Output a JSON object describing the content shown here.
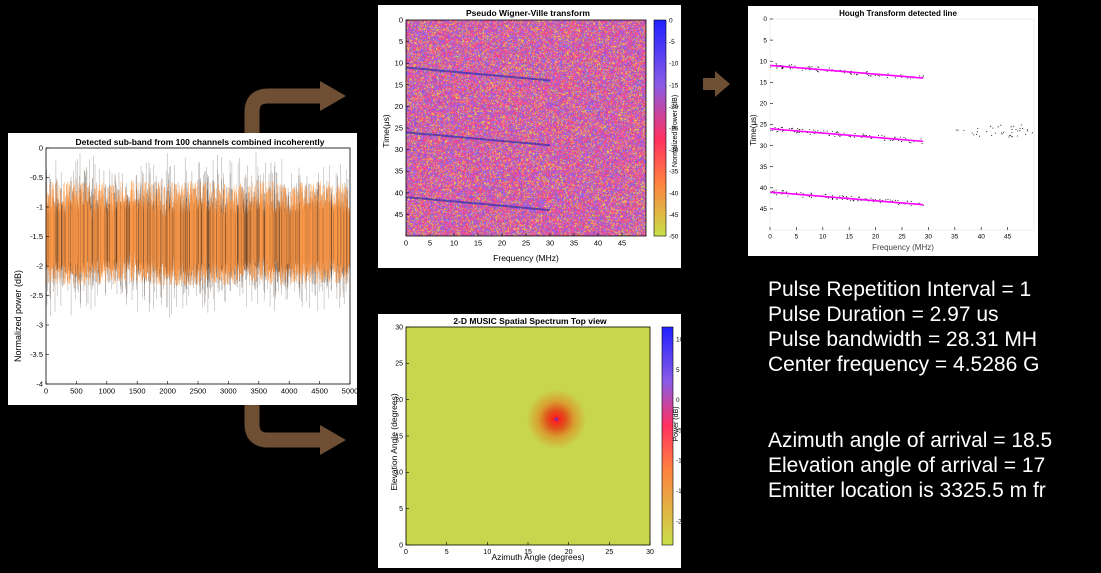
{
  "chart_data": [
    {
      "type": "line",
      "title": "Detected sub-band from 100 channels combined incoherently",
      "xlabel": "",
      "ylabel": "Normalized power (dB)",
      "xlim": [
        0,
        5000
      ],
      "ylim": [
        -4,
        0
      ],
      "x_ticks": [
        "0",
        "500",
        "1000",
        "1500",
        "2000",
        "2500",
        "3000",
        "3500",
        "4000",
        "4500",
        "5000"
      ],
      "y_ticks": [
        "0",
        "-0.5",
        "-1",
        "-1.5",
        "-2",
        "-2.5",
        "-3",
        "-3.5",
        "-4"
      ],
      "series_color": "#ff9b4a",
      "band_upper": [
        [
          0,
          -1.1
        ],
        [
          500,
          -1.05
        ],
        [
          1000,
          -1.1
        ],
        [
          1500,
          -1.0
        ],
        [
          2000,
          -1.1
        ],
        [
          2500,
          -1.05
        ],
        [
          3000,
          -1.15
        ],
        [
          3500,
          -1.05
        ],
        [
          4000,
          -1.1
        ],
        [
          4500,
          -1.05
        ],
        [
          5000,
          -1.1
        ]
      ],
      "band_lower": [
        [
          0,
          -1.9
        ],
        [
          500,
          -1.95
        ],
        [
          1000,
          -1.9
        ],
        [
          1500,
          -1.9
        ],
        [
          2000,
          -2.0
        ],
        [
          2500,
          -1.95
        ],
        [
          3000,
          -1.95
        ],
        [
          3500,
          -1.9
        ],
        [
          4000,
          -1.95
        ],
        [
          4500,
          -1.9
        ],
        [
          5000,
          -1.9
        ]
      ],
      "spike_range": [
        -2.9,
        -0.05
      ]
    },
    {
      "type": "heatmap",
      "title": "Pseudo Wigner-Ville transform",
      "xlabel": "Frequency (MHz)",
      "ylabel": "Time(μs)",
      "xlim": [
        0,
        50
      ],
      "ylim": [
        0,
        50
      ],
      "x_ticks": [
        "0",
        "5",
        "10",
        "15",
        "20",
        "25",
        "30",
        "35",
        "40",
        "45"
      ],
      "y_ticks": [
        "0",
        "5",
        "10",
        "15",
        "20",
        "25",
        "30",
        "35",
        "40",
        "45"
      ],
      "colorbar_label": "Normalized Power (dB)",
      "colorbar_ticks": [
        "0",
        "-5",
        "-10",
        "-15",
        "-20",
        "-25",
        "-30",
        "-35",
        "-40",
        "-45",
        "-50"
      ],
      "lines": [
        {
          "x": [
            0,
            30
          ],
          "y": [
            11,
            14
          ]
        },
        {
          "x": [
            0,
            30
          ],
          "y": [
            26,
            29
          ]
        },
        {
          "x": [
            0,
            30
          ],
          "y": [
            41,
            44
          ]
        }
      ]
    },
    {
      "type": "line",
      "title": "Hough Transform detected line",
      "xlabel": "Frequency (MHz)",
      "ylabel": "Time(μs)",
      "xlim": [
        0,
        50
      ],
      "ylim": [
        0,
        50
      ],
      "x_ticks": [
        "0",
        "5",
        "10",
        "15",
        "20",
        "25",
        "30",
        "35",
        "40",
        "45"
      ],
      "y_ticks": [
        "0",
        "5",
        "10",
        "15",
        "20",
        "25",
        "30",
        "35",
        "40",
        "45"
      ],
      "line_color": "#ff00ff",
      "series": [
        {
          "x": [
            0,
            29
          ],
          "y": [
            11,
            14
          ]
        },
        {
          "x": [
            0,
            29
          ],
          "y": [
            26,
            29
          ]
        },
        {
          "x": [
            0,
            29
          ],
          "y": [
            41,
            44
          ]
        }
      ]
    },
    {
      "type": "heatmap",
      "title": "2-D MUSIC Spatial Spectrum Top view",
      "xlabel": "Azimuth Angle (degrees)",
      "ylabel": "Elevation Angle (degrees)",
      "xlim": [
        0,
        30
      ],
      "ylim": [
        0,
        30
      ],
      "x_ticks": [
        "0",
        "5",
        "10",
        "15",
        "20",
        "25",
        "30"
      ],
      "y_ticks": [
        "0",
        "5",
        "10",
        "15",
        "20",
        "25",
        "30"
      ],
      "colorbar_label": "Power (dB)",
      "colorbar_ticks": [
        "10",
        "5",
        "0",
        "-5",
        "-10",
        "-15",
        "-20"
      ],
      "peak": {
        "x": 18.5,
        "y": 17.3
      }
    }
  ],
  "results": {
    "pri": "Pulse Repetition Interval = 1",
    "duration": "Pulse Duration = 2.97 us",
    "bandwidth": "Pulse bandwidth = 28.31 MH",
    "center": "Center frequency = 4.5286 G",
    "azimuth": "Azimuth angle of arrival = 18.5",
    "elevation": "Elevation angle of arrival = 17",
    "location": "Emitter location is 3325.5 m fr"
  },
  "colors": {
    "background": "#000000",
    "arrow": "#6e4f33",
    "text": "#ffffff"
  }
}
